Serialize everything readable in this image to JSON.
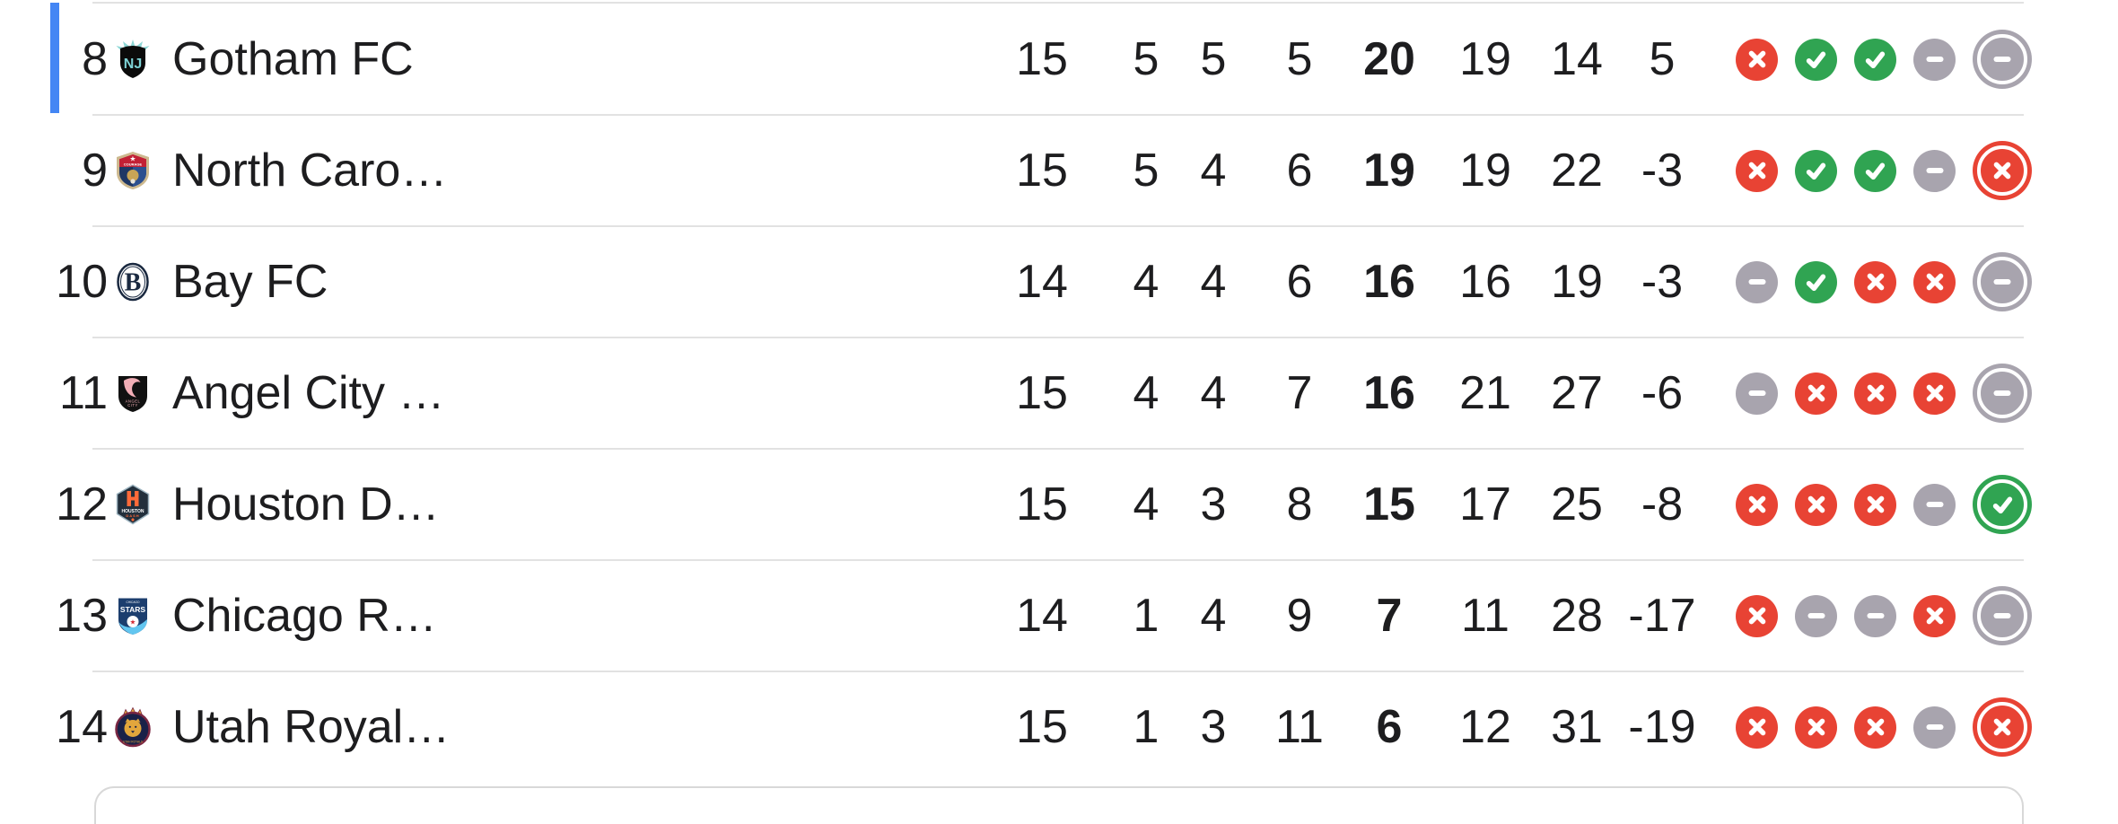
{
  "legend_colors": {
    "win": "#30a452",
    "loss": "#e84334",
    "draw": "#a8a4ae",
    "highlight_bar": "#4486f4",
    "separator": "#e2e2e2"
  },
  "standings": {
    "rows": [
      {
        "pos": "8",
        "team": "Gotham FC",
        "logo": "gotham-fc",
        "highlighted": true,
        "stats": [
          "15",
          "5",
          "5",
          "5",
          "20",
          "19",
          "14",
          "5"
        ],
        "form": [
          {
            "result": "loss"
          },
          {
            "result": "win"
          },
          {
            "result": "win"
          },
          {
            "result": "draw"
          },
          {
            "result": "draw",
            "latest": true
          }
        ]
      },
      {
        "pos": "9",
        "team": "North Caro…",
        "logo": "north-carolina-courage",
        "highlighted": false,
        "stats": [
          "15",
          "5",
          "4",
          "6",
          "19",
          "19",
          "22",
          "-3"
        ],
        "form": [
          {
            "result": "loss"
          },
          {
            "result": "win"
          },
          {
            "result": "win"
          },
          {
            "result": "draw"
          },
          {
            "result": "loss",
            "latest": true
          }
        ]
      },
      {
        "pos": "10",
        "team": "Bay FC",
        "logo": "bay-fc",
        "highlighted": false,
        "stats": [
          "14",
          "4",
          "4",
          "6",
          "16",
          "16",
          "19",
          "-3"
        ],
        "form": [
          {
            "result": "draw"
          },
          {
            "result": "win"
          },
          {
            "result": "loss"
          },
          {
            "result": "loss"
          },
          {
            "result": "draw",
            "latest": true
          }
        ]
      },
      {
        "pos": "11",
        "team": "Angel City …",
        "logo": "angel-city-fc",
        "highlighted": false,
        "stats": [
          "15",
          "4",
          "4",
          "7",
          "16",
          "21",
          "27",
          "-6"
        ],
        "form": [
          {
            "result": "draw"
          },
          {
            "result": "loss"
          },
          {
            "result": "loss"
          },
          {
            "result": "loss"
          },
          {
            "result": "draw",
            "latest": true
          }
        ]
      },
      {
        "pos": "12",
        "team": "Houston D…",
        "logo": "houston-dash",
        "highlighted": false,
        "stats": [
          "15",
          "4",
          "3",
          "8",
          "15",
          "17",
          "25",
          "-8"
        ],
        "form": [
          {
            "result": "loss"
          },
          {
            "result": "loss"
          },
          {
            "result": "loss"
          },
          {
            "result": "draw"
          },
          {
            "result": "win",
            "latest": true
          }
        ]
      },
      {
        "pos": "13",
        "team": "Chicago R…",
        "logo": "chicago-stars",
        "highlighted": false,
        "stats": [
          "14",
          "1",
          "4",
          "9",
          "7",
          "11",
          "28",
          "-17"
        ],
        "form": [
          {
            "result": "loss"
          },
          {
            "result": "draw"
          },
          {
            "result": "draw"
          },
          {
            "result": "loss"
          },
          {
            "result": "draw",
            "latest": true
          }
        ]
      },
      {
        "pos": "14",
        "team": "Utah Royal…",
        "logo": "utah-royals",
        "highlighted": false,
        "stats": [
          "15",
          "1",
          "3",
          "11",
          "6",
          "12",
          "31",
          "-19"
        ],
        "form": [
          {
            "result": "loss"
          },
          {
            "result": "loss"
          },
          {
            "result": "loss"
          },
          {
            "result": "draw"
          },
          {
            "result": "loss",
            "latest": true
          }
        ]
      }
    ]
  }
}
